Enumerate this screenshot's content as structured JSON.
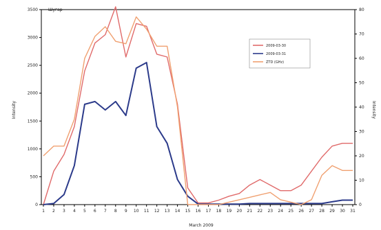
{
  "chart_data": {
    "type": "line",
    "title": "Шугар",
    "xlabel": "March 2009",
    "ylabel_left": "Intensity",
    "ylabel_right": "Intensity",
    "left_ylim": [
      0,
      3500
    ],
    "right_ylim": [
      0,
      80
    ],
    "left_ticks": [
      0,
      500,
      1000,
      1500,
      2000,
      2500,
      3000,
      3500
    ],
    "right_ticks": [
      0,
      10,
      20,
      30,
      40,
      50,
      60,
      70,
      80
    ],
    "categories": [
      "1",
      "2",
      "3",
      "4",
      "5",
      "6",
      "7",
      "8",
      "9",
      "10",
      "11",
      "12",
      "13",
      "14",
      "15",
      "16",
      "17",
      "18",
      "19",
      "20",
      "21",
      "22",
      "23",
      "24",
      "25",
      "26",
      "27",
      "28",
      "29",
      "30",
      "31"
    ],
    "series": [
      {
        "name": "2009-03-30",
        "axis": "left",
        "color": "#e06a6a",
        "values": [
          0,
          600,
          900,
          1400,
          2400,
          2900,
          3050,
          3550,
          2650,
          3250,
          3200,
          2700,
          2650,
          1800,
          300,
          30,
          30,
          80,
          150,
          200,
          350,
          450,
          350,
          250,
          250,
          350,
          600,
          850,
          1050,
          1100,
          1100
        ]
      },
      {
        "name": "2009-03-31",
        "axis": "left",
        "color": "#2b3a8a",
        "values": [
          0,
          20,
          180,
          700,
          1800,
          1850,
          1700,
          1850,
          1600,
          2450,
          2550,
          1400,
          1100,
          450,
          150,
          10,
          10,
          10,
          10,
          10,
          20,
          20,
          20,
          20,
          20,
          20,
          20,
          20,
          50,
          80,
          80
        ]
      },
      {
        "name": "ZTD (GHz)",
        "axis": "right",
        "color": "#f0a070",
        "values": [
          20,
          24,
          24,
          35,
          60,
          69,
          73,
          67,
          66,
          77,
          72,
          65,
          65,
          40,
          0,
          0,
          0,
          0,
          1,
          2,
          3,
          4,
          5,
          2,
          1,
          0,
          2,
          12,
          16,
          14,
          14
        ]
      }
    ],
    "grid": false,
    "legend_position": "top-right"
  }
}
